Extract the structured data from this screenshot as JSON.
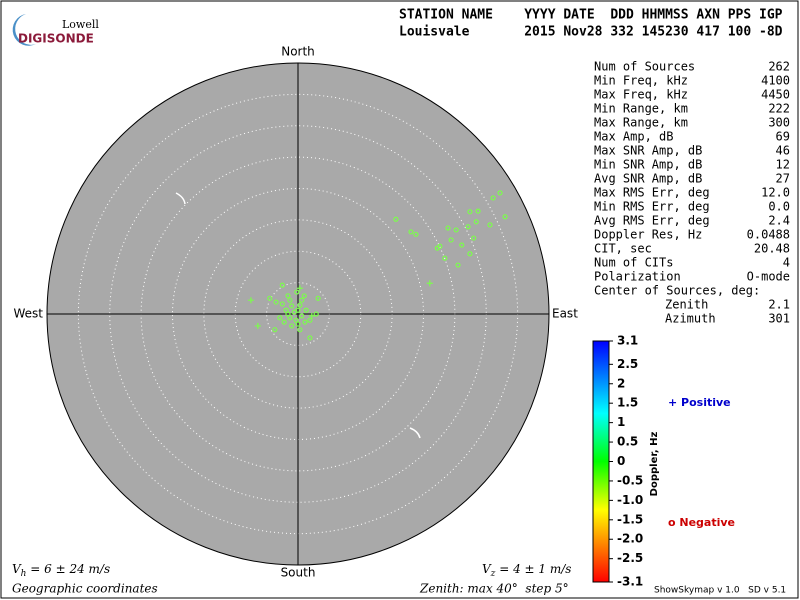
{
  "logo": {
    "top": "Lowell",
    "bottom": "DIGISONDE"
  },
  "header": {
    "line1": "STATION NAME    YYYY DATE  DDD HHMMSS AXN PPS IGP",
    "line2": "Louisvale       2015 Nov28 332 145230 417 100 -8D"
  },
  "stats": [
    [
      "Num of Sources",
      "262"
    ],
    [
      "Min Freq, kHz",
      "4100"
    ],
    [
      "Max Freq, kHz",
      "4450"
    ],
    [
      "Min Range, km",
      "222"
    ],
    [
      "Max Range, km",
      "300"
    ],
    [
      "Max Amp, dB",
      "69"
    ],
    [
      "Max SNR Amp, dB",
      "46"
    ],
    [
      "Min SNR Amp, dB",
      "12"
    ],
    [
      "Avg SNR Amp, dB",
      "27"
    ],
    [
      "Max RMS Err, deg",
      "12.0"
    ],
    [
      "Min RMS Err, deg",
      "0.0"
    ],
    [
      "Avg RMS Err, deg",
      "2.4"
    ],
    [
      "Doppler Res, Hz",
      "0.0488"
    ],
    [
      "CIT, sec",
      "20.48"
    ],
    [
      "Num of CITs",
      "4"
    ],
    [
      "Polarization",
      "O-mode"
    ],
    [
      "Center of Sources, deg:",
      ""
    ],
    [
      "Zenith",
      "2.1"
    ],
    [
      "Azimuth",
      "301"
    ]
  ],
  "chart_data": {
    "type": "skymap",
    "directions": {
      "north": "North",
      "south": "South",
      "east": "East",
      "west": "West"
    },
    "xlim": [
      -40,
      40
    ],
    "ylim": [
      -40,
      40
    ],
    "ring_step": 5,
    "point_color": "#7cfc4c",
    "series": [
      {
        "name": "Positive",
        "marker": "plus",
        "color": "#0000cc",
        "x": [
          21.0,
          -7.5,
          -6.4,
          0.3,
          2.2
        ],
        "y": [
          4.9,
          2.2,
          -1.9,
          4.1,
          -0.3
        ]
      },
      {
        "name": "Negative",
        "marker": "circle",
        "color": "#cc0000",
        "x": [
          32.2,
          31.1,
          33.0,
          28.7,
          27.4,
          30.6,
          28.4,
          27.1,
          28.0,
          25.2,
          24.4,
          26.1,
          22.6,
          22.2,
          23.4,
          25.5,
          27.4,
          18.0,
          15.6,
          18.8,
          23.9,
          -2.5,
          -0.2,
          3.2,
          -3.5,
          -1.3,
          0.3,
          -1.9,
          -0.6,
          0.6,
          -1.3,
          -0.3,
          1.1,
          -2.9,
          -3.7,
          0.3,
          1.9,
          -1.0,
          2.9,
          -4.5,
          -1.6,
          1.0,
          0,
          -1.0,
          1.3,
          -2.2,
          0,
          -1.6,
          1.9,
          -2.5,
          0.6
        ],
        "y": [
          19.3,
          18.5,
          15.5,
          16.4,
          16.3,
          14.2,
          14.7,
          13.9,
          12.1,
          13.4,
          11.8,
          11.0,
          10.8,
          10.5,
          8.9,
          7.8,
          9.6,
          13.1,
          15.1,
          12.7,
          13.7,
          4.6,
          3.5,
          2.5,
          1.9,
          2.2,
          1.4,
          0.6,
          0.3,
          -0.3,
          -0.6,
          -1.0,
          -1.3,
          -0.6,
          -2.5,
          -2.5,
          -3.8,
          -1.9,
          0,
          2.5,
          2.9,
          2.9,
          0.6,
          1.3,
          0.6,
          -1.3,
          -1.6,
          0,
          -1.0,
          1.6,
          2.2
        ]
      }
    ],
    "legend_labels": [
      "+ Positive",
      "o Negative"
    ],
    "colorbar": {
      "label": "Doppler, Hz",
      "lim": [
        -3.1,
        3.1
      ],
      "ticks": [
        3.1,
        2.5,
        2,
        1.5,
        1,
        0.5,
        0,
        -0.5,
        {
          "value": -1,
          "label": "-1.0"
        },
        -1.5,
        {
          "value": -2,
          "label": "-2.0"
        },
        -2.5,
        -3.1
      ]
    },
    "vh": {
      "symbol": "V",
      "sub": "h",
      "text": " = 6 ± 24 m/s"
    },
    "vz": {
      "symbol": "V",
      "sub": "z",
      "text": " = 4 ± 1 m/s"
    },
    "coords": "Geographic coordinates",
    "zenith": "Zenith: max 40°  step 5°",
    "version": "ShowSkymap v 1.0   SD v 5.1"
  }
}
